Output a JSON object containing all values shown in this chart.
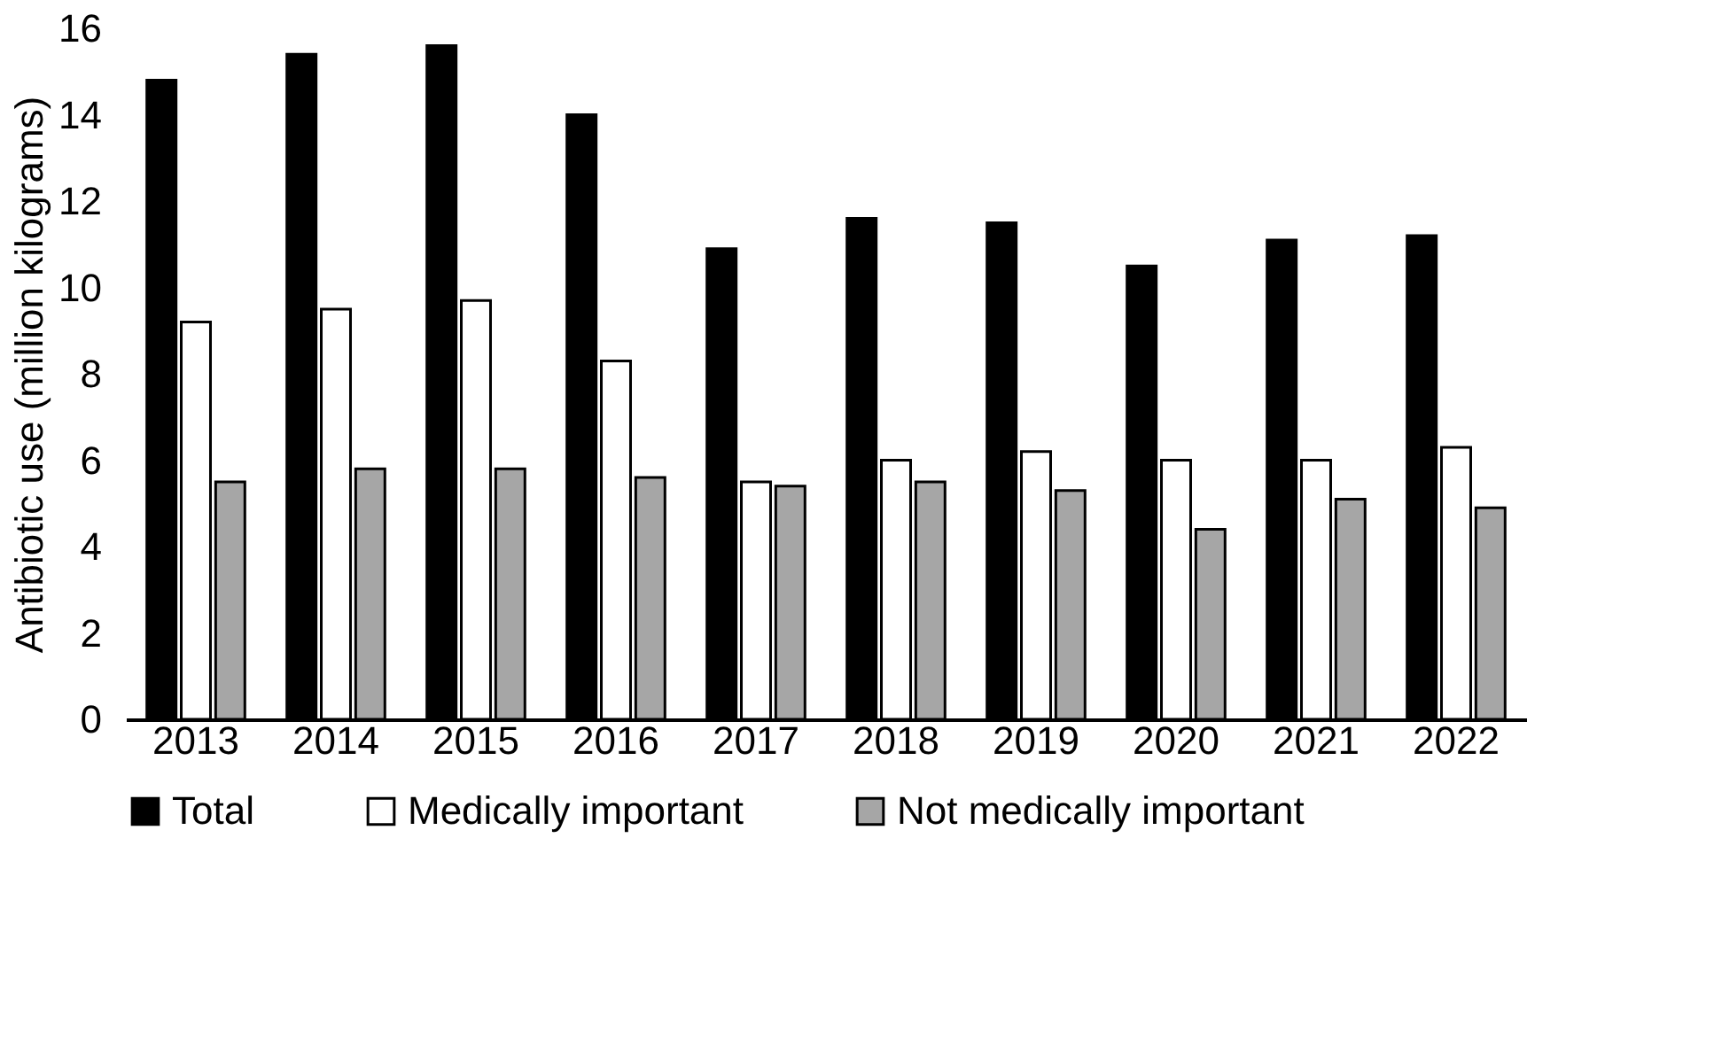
{
  "chart_data": {
    "type": "bar",
    "ylabel": "Antibiotic use (million kilograms)",
    "categories": [
      "2013",
      "2014",
      "2015",
      "2016",
      "2017",
      "2018",
      "2019",
      "2020",
      "2021",
      "2022"
    ],
    "series": [
      {
        "name": "Total",
        "color": "#000000",
        "values": [
          14.8,
          15.4,
          15.6,
          14.0,
          10.9,
          11.6,
          11.5,
          10.5,
          11.1,
          11.2
        ]
      },
      {
        "name": "Medically important",
        "color": "#ffffff",
        "values": [
          9.2,
          9.5,
          9.7,
          8.3,
          5.5,
          6.0,
          6.2,
          6.0,
          6.0,
          6.3
        ]
      },
      {
        "name": "Not medically important",
        "color": "#a6a6a6",
        "values": [
          5.5,
          5.8,
          5.8,
          5.6,
          5.4,
          5.5,
          5.3,
          4.4,
          5.1,
          4.9
        ]
      }
    ],
    "ylim": [
      0,
      16
    ],
    "yticks": [
      0,
      2,
      4,
      6,
      8,
      10,
      12,
      14,
      16
    ],
    "grid": false,
    "legend": "bottom"
  }
}
